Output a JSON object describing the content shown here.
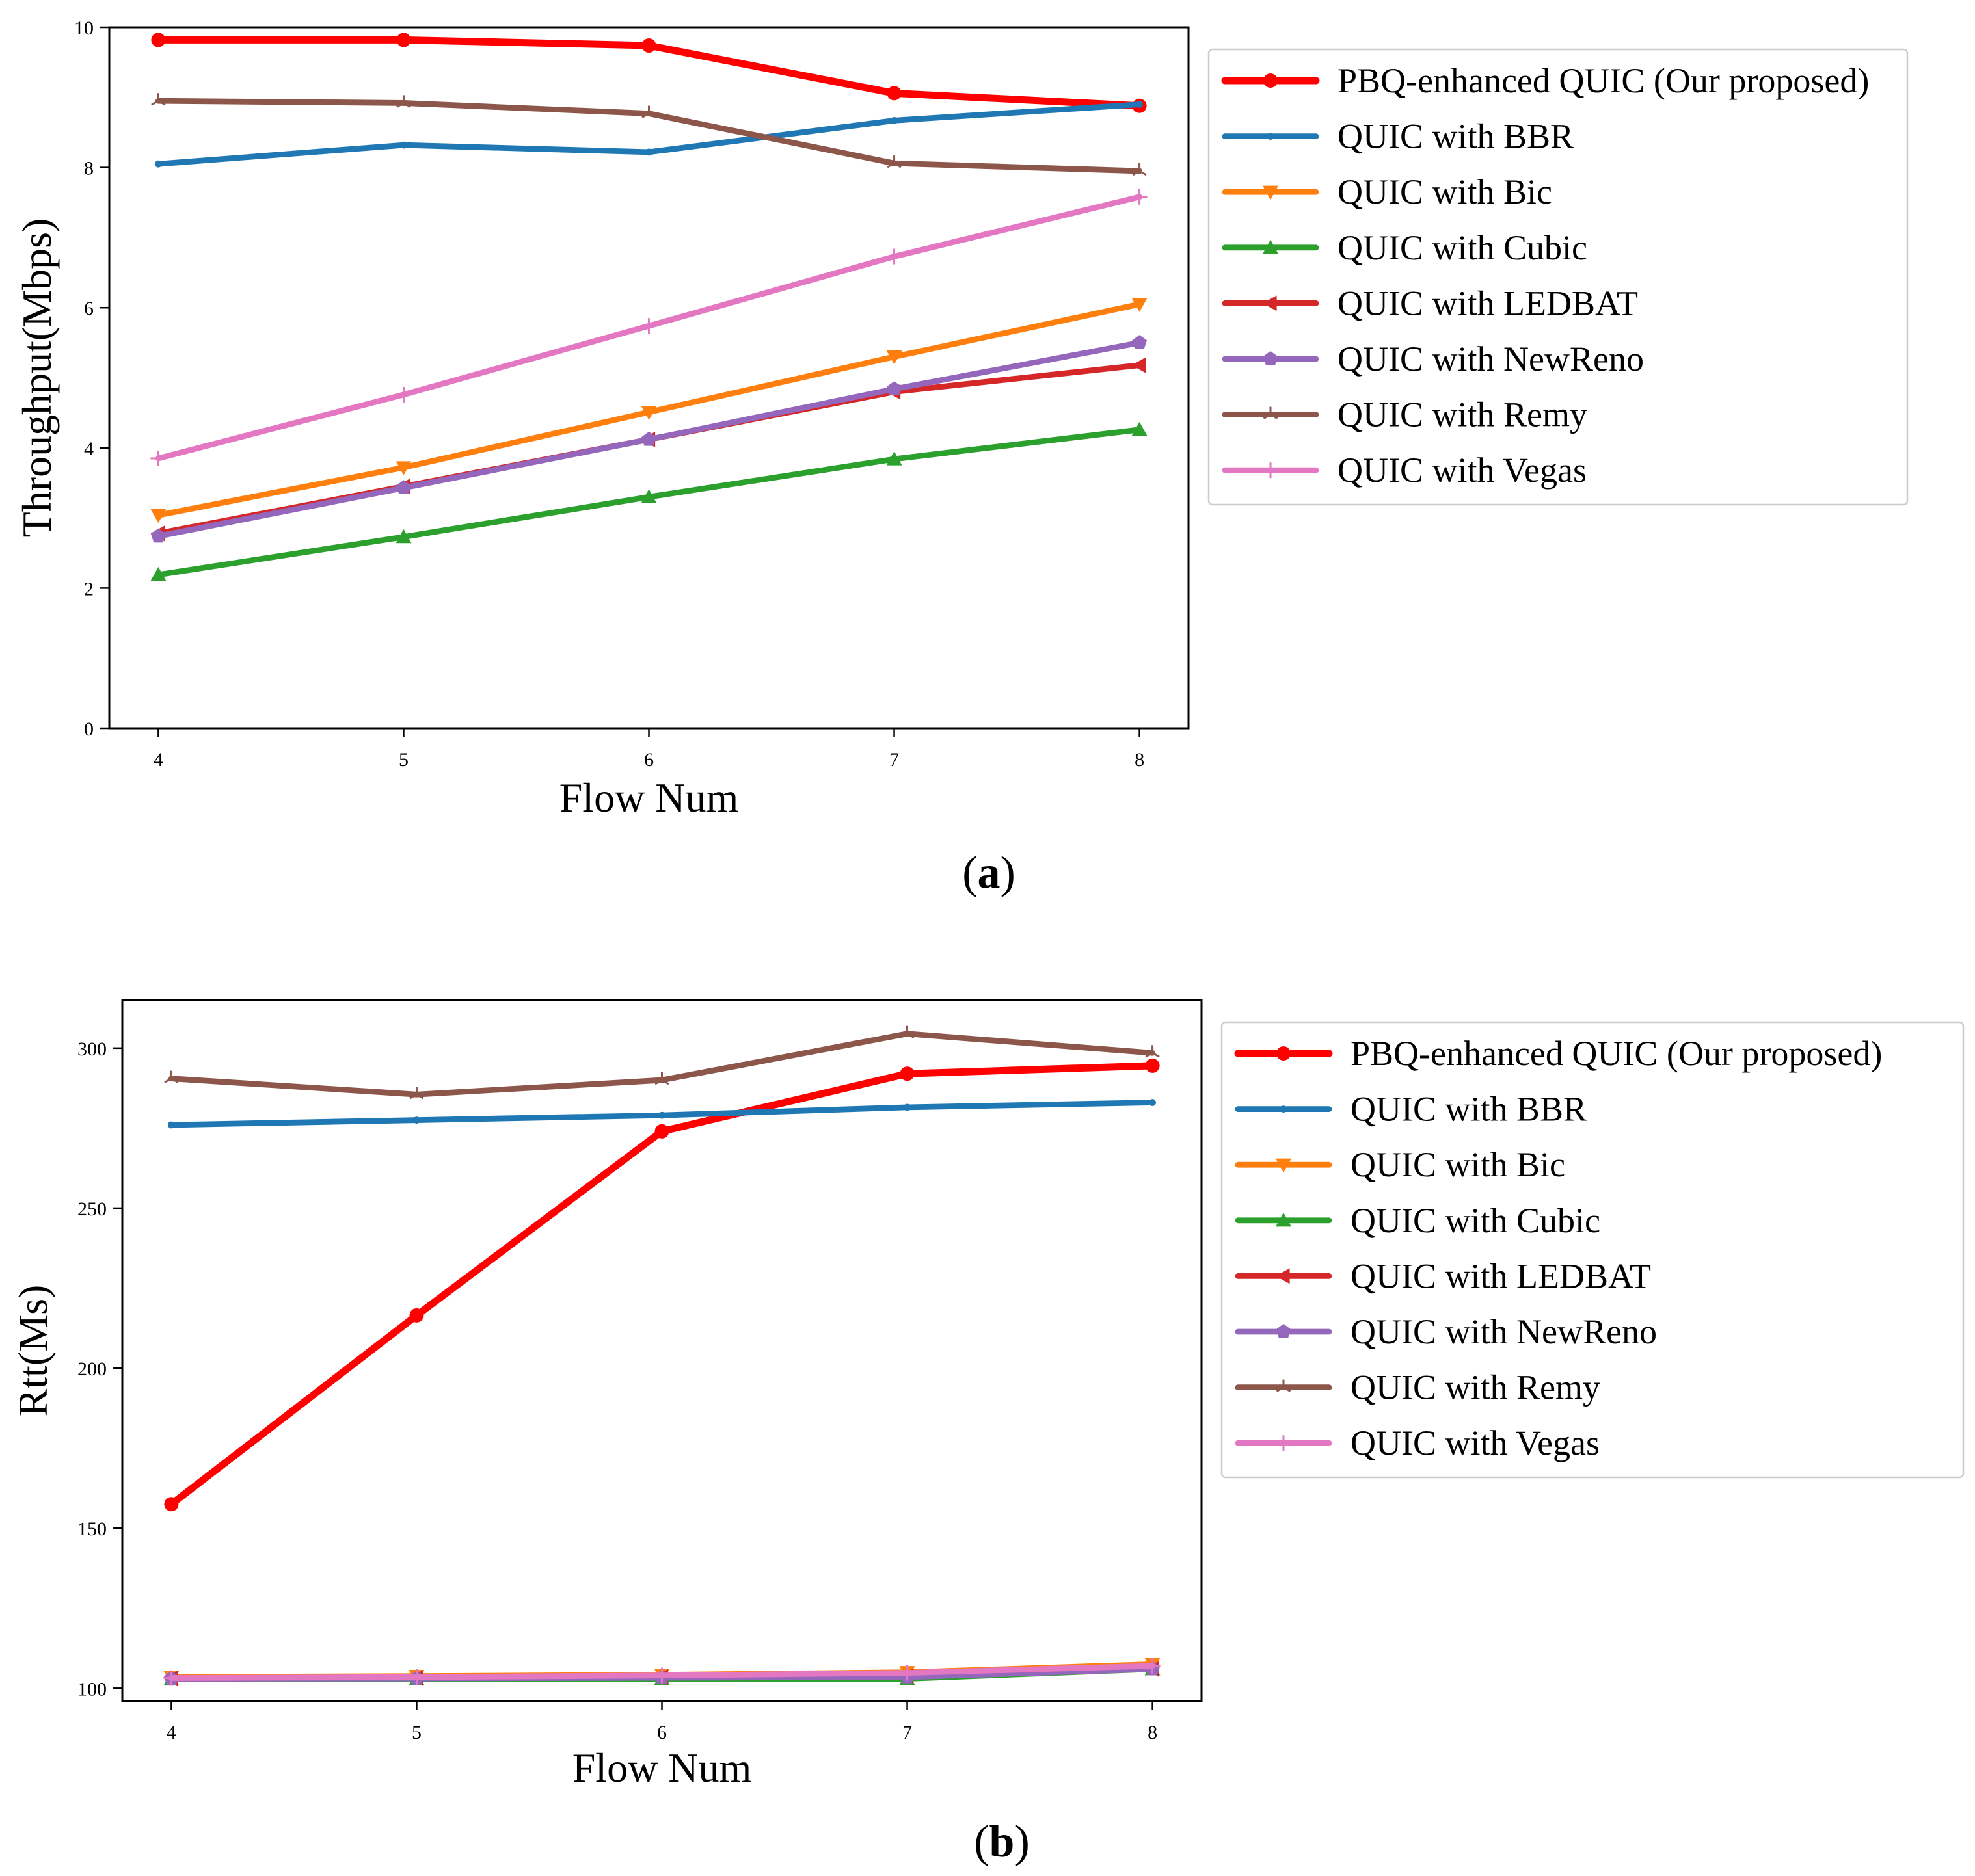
{
  "figure": {
    "panel_labels": [
      "a",
      "b"
    ]
  },
  "chart_data": [
    {
      "type": "line",
      "panel": "a",
      "xlabel": "Flow Num",
      "ylabel": "Throughput(Mbps)",
      "x": [
        4,
        5,
        6,
        7,
        8
      ],
      "xticks": [
        "4",
        "5",
        "6",
        "7",
        "8"
      ],
      "yticks": [
        "0",
        "2",
        "4",
        "6",
        "8",
        "10"
      ],
      "ylim": [
        0,
        10
      ],
      "xlim": [
        3.8,
        8.2
      ],
      "grid": false,
      "legend": "outside-right",
      "series": [
        {
          "name": "PBQ-enhanced QUIC (Our proposed)",
          "color": "#ff0000",
          "marker": "circle",
          "width": 5,
          "values": [
            9.82,
            9.82,
            9.74,
            9.06,
            8.88
          ]
        },
        {
          "name": "QUIC with BBR",
          "color": "#1f77b4",
          "marker": "point",
          "width": 4,
          "values": [
            8.05,
            8.32,
            8.22,
            8.67,
            8.9
          ]
        },
        {
          "name": "QUIC with Bic",
          "color": "#ff7f0e",
          "marker": "triangle-down",
          "width": 4,
          "values": [
            3.04,
            3.72,
            4.51,
            5.3,
            6.05
          ]
        },
        {
          "name": "QUIC with Cubic",
          "color": "#2ca02c",
          "marker": "triangle-up",
          "width": 4,
          "values": [
            2.19,
            2.73,
            3.3,
            3.84,
            4.26
          ]
        },
        {
          "name": "QUIC with LEDBAT",
          "color": "#d62728",
          "marker": "triangle-left",
          "width": 4,
          "values": [
            2.78,
            3.45,
            4.12,
            4.8,
            5.18
          ]
        },
        {
          "name": "QUIC with NewReno",
          "color": "#9467bd",
          "marker": "pentagon",
          "width": 4,
          "values": [
            2.74,
            3.43,
            4.12,
            4.84,
            5.5
          ]
        },
        {
          "name": "QUIC with Remy",
          "color": "#8c564b",
          "marker": "tri",
          "width": 4,
          "values": [
            8.95,
            8.92,
            8.77,
            8.06,
            7.95
          ]
        },
        {
          "name": "QUIC with Vegas",
          "color": "#e377c2",
          "marker": "plus",
          "width": 4,
          "values": [
            3.85,
            4.76,
            5.74,
            6.73,
            7.58
          ]
        }
      ]
    },
    {
      "type": "line",
      "panel": "b",
      "xlabel": "Flow Num",
      "ylabel": "Rtt(Ms)",
      "x": [
        4,
        5,
        6,
        7,
        8
      ],
      "xticks": [
        "4",
        "5",
        "6",
        "7",
        "8"
      ],
      "yticks": [
        "100",
        "150",
        "200",
        "250",
        "300"
      ],
      "ylim": [
        96,
        315
      ],
      "xlim": [
        3.8,
        8.2
      ],
      "grid": false,
      "legend": "outside-right",
      "series": [
        {
          "name": "PBQ-enhanced QUIC (Our proposed)",
          "color": "#ff0000",
          "marker": "circle",
          "width": 5,
          "values": [
            157.5,
            216.5,
            274.0,
            292.0,
            294.5
          ]
        },
        {
          "name": "QUIC with BBR",
          "color": "#1f77b4",
          "marker": "point",
          "width": 4,
          "values": [
            276.0,
            277.5,
            279.0,
            281.5,
            283.0
          ]
        },
        {
          "name": "QUIC with Bic",
          "color": "#ff7f0e",
          "marker": "triangle-down",
          "width": 4,
          "values": [
            103.5,
            103.8,
            104.2,
            105.0,
            107.5
          ]
        },
        {
          "name": "QUIC with Cubic",
          "color": "#2ca02c",
          "marker": "triangle-up",
          "width": 4,
          "values": [
            102.8,
            102.9,
            103.0,
            103.0,
            106.0
          ]
        },
        {
          "name": "QUIC with LEDBAT",
          "color": "#d62728",
          "marker": "triangle-left",
          "width": 4,
          "values": [
            103.0,
            103.2,
            103.5,
            103.8,
            106.0
          ]
        },
        {
          "name": "QUIC with NewReno",
          "color": "#9467bd",
          "marker": "pentagon",
          "width": 4,
          "values": [
            103.0,
            103.1,
            103.3,
            103.5,
            106.0
          ]
        },
        {
          "name": "QUIC with Remy",
          "color": "#8c564b",
          "marker": "tri",
          "width": 4,
          "values": [
            290.5,
            285.5,
            290.0,
            304.5,
            298.5
          ]
        },
        {
          "name": "QUIC with Vegas",
          "color": "#e377c2",
          "marker": "plus",
          "width": 4,
          "values": [
            103.2,
            103.5,
            104.0,
            104.8,
            107.0
          ]
        }
      ]
    }
  ]
}
